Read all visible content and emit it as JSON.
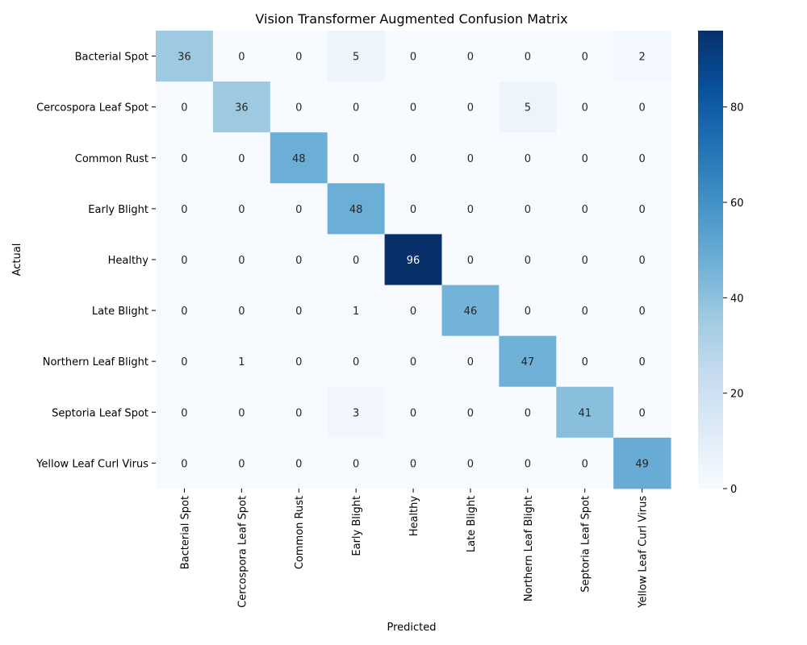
{
  "chart_data": {
    "type": "heatmap",
    "title": "Vision Transformer Augmented Confusion Matrix",
    "xlabel": "Predicted",
    "ylabel": "Actual",
    "x_categories": [
      "Bacterial Spot",
      "Cercospora Leaf Spot",
      "Common Rust",
      "Early Blight",
      "Healthy",
      "Late Blight",
      "Northern Leaf Blight",
      "Septoria Leaf Spot",
      "Yellow Leaf Curl Virus"
    ],
    "y_categories": [
      "Bacterial Spot",
      "Cercospora Leaf Spot",
      "Common Rust",
      "Early Blight",
      "Healthy",
      "Late Blight",
      "Northern Leaf Blight",
      "Septoria Leaf Spot",
      "Yellow Leaf Curl Virus"
    ],
    "values": [
      [
        36,
        0,
        0,
        5,
        0,
        0,
        0,
        0,
        2
      ],
      [
        0,
        36,
        0,
        0,
        0,
        0,
        5,
        0,
        0
      ],
      [
        0,
        0,
        48,
        0,
        0,
        0,
        0,
        0,
        0
      ],
      [
        0,
        0,
        0,
        48,
        0,
        0,
        0,
        0,
        0
      ],
      [
        0,
        0,
        0,
        0,
        96,
        0,
        0,
        0,
        0
      ],
      [
        0,
        0,
        0,
        1,
        0,
        46,
        0,
        0,
        0
      ],
      [
        0,
        1,
        0,
        0,
        0,
        0,
        47,
        0,
        0
      ],
      [
        0,
        0,
        0,
        3,
        0,
        0,
        0,
        41,
        0
      ],
      [
        0,
        0,
        0,
        0,
        0,
        0,
        0,
        0,
        49
      ]
    ],
    "colormap": "Blues",
    "color_range": [
      0,
      96
    ],
    "colorbar_ticks": [
      0,
      20,
      40,
      60,
      80
    ],
    "grid": false
  }
}
